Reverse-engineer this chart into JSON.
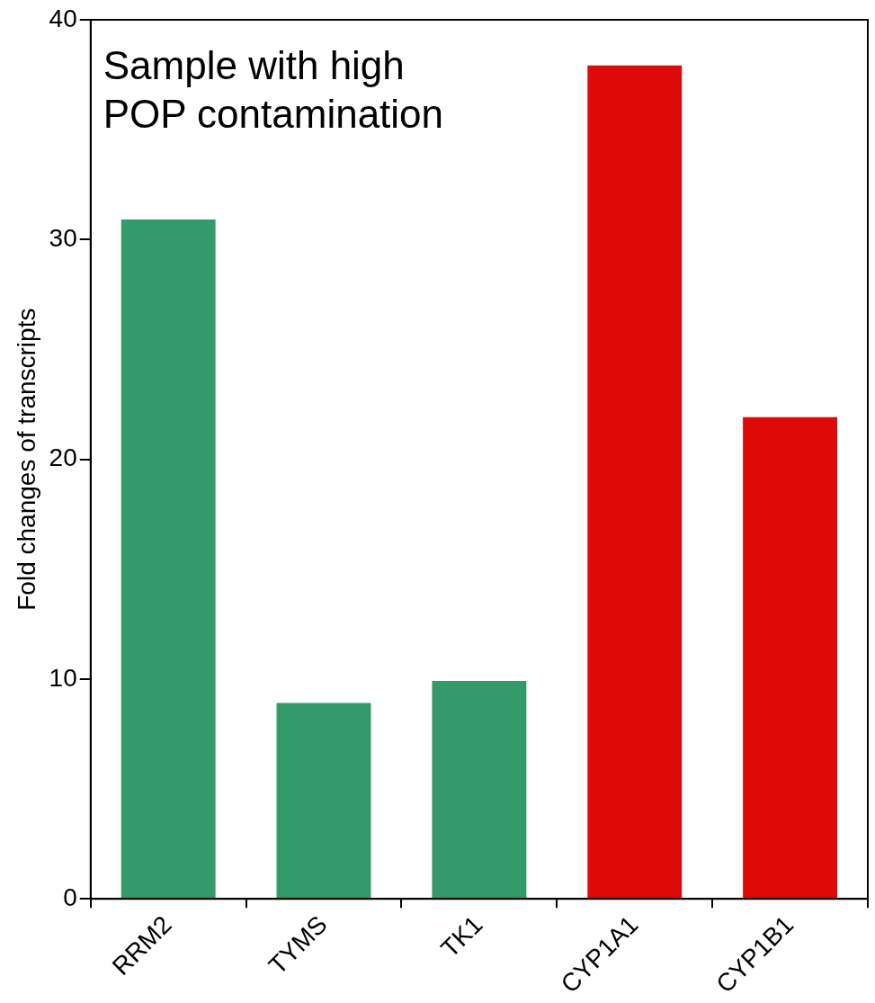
{
  "chart_data": {
    "type": "bar",
    "ylabel": "Fold changes of transcripts",
    "categories": [
      "RRM2",
      "TYMS",
      "TK1",
      "CYP1A1",
      "CYP1B1"
    ],
    "values": [
      31,
      9,
      10,
      38,
      22
    ],
    "colors": [
      "#359a6a",
      "#359a6a",
      "#359a6a",
      "#de0a0a",
      "#de0a0a"
    ],
    "ylim": [
      0,
      40
    ],
    "yticks": [
      0,
      10,
      20,
      30,
      40
    ],
    "grid": false,
    "legend": false,
    "annotations": [
      "Sample with high POP contamination"
    ]
  }
}
